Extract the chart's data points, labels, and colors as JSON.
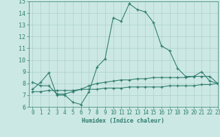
{
  "x": [
    0,
    1,
    2,
    3,
    4,
    5,
    6,
    7,
    8,
    9,
    10,
    11,
    12,
    13,
    14,
    15,
    16,
    17,
    18,
    19,
    20,
    21,
    22,
    23
  ],
  "line1": [
    7.5,
    8.1,
    8.9,
    7.0,
    7.0,
    6.4,
    6.2,
    7.3,
    9.4,
    10.1,
    13.6,
    13.3,
    14.8,
    14.3,
    14.1,
    13.2,
    11.2,
    10.8,
    9.3,
    8.6,
    8.6,
    9.0,
    8.2,
    8.0
  ],
  "line2": [
    8.1,
    7.8,
    7.8,
    7.1,
    7.1,
    7.3,
    7.5,
    7.8,
    8.0,
    8.1,
    8.2,
    8.3,
    8.3,
    8.4,
    8.4,
    8.5,
    8.5,
    8.5,
    8.5,
    8.5,
    8.6,
    8.6,
    8.6,
    8.0
  ],
  "line3": [
    7.3,
    7.3,
    7.4,
    7.4,
    7.4,
    7.4,
    7.5,
    7.5,
    7.5,
    7.6,
    7.6,
    7.6,
    7.7,
    7.7,
    7.7,
    7.7,
    7.7,
    7.8,
    7.8,
    7.8,
    7.8,
    7.9,
    7.9,
    8.0
  ],
  "line_color": "#2e7d6e",
  "bg_color": "#cce8e4",
  "grid_color": "#aacfcb",
  "xlabel": "Humidex (Indice chaleur)",
  "ylim": [
    6,
    15
  ],
  "xlim": [
    -0.5,
    23
  ],
  "yticks": [
    6,
    7,
    8,
    9,
    10,
    11,
    12,
    13,
    14,
    15
  ],
  "xticks": [
    0,
    1,
    2,
    3,
    4,
    5,
    6,
    7,
    8,
    9,
    10,
    11,
    12,
    13,
    14,
    15,
    16,
    17,
    18,
    19,
    20,
    21,
    22,
    23
  ],
  "xlabel_fontsize": 6.0,
  "tick_fontsize": 5.5
}
